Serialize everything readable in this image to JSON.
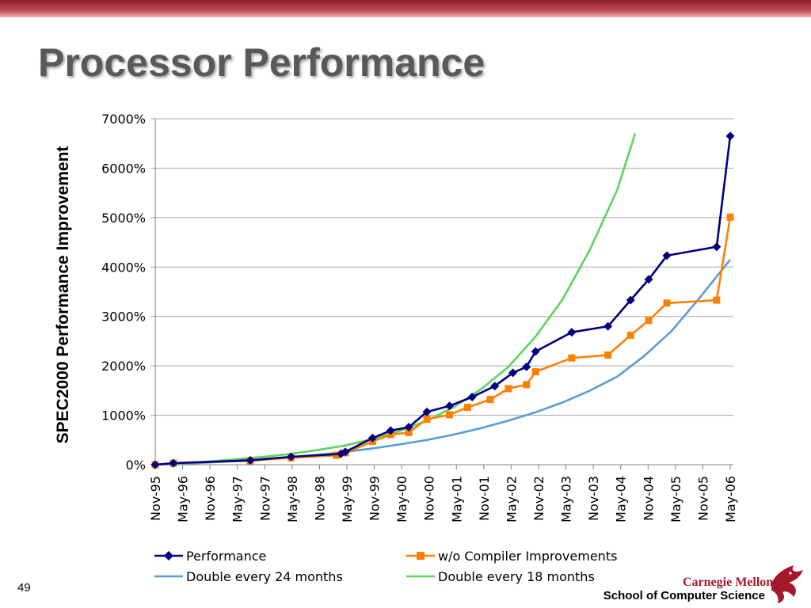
{
  "slide": {
    "title": "Processor Performance",
    "number": "49",
    "footer": "School of Computer Science",
    "logo_text": "Carnegie Mellon",
    "accent_color": "#a3182d"
  },
  "chart_data": {
    "type": "line",
    "title": "",
    "xlabel": "",
    "ylabel": "SPEC2000 Performance Improvement",
    "x_tick_labels": [
      "Nov-95",
      "May-96",
      "Nov-96",
      "May-97",
      "Nov-97",
      "May-98",
      "Nov-98",
      "May-99",
      "Nov-99",
      "May-00",
      "Nov-00",
      "May-01",
      "Nov-01",
      "May-02",
      "Nov-02",
      "May-03",
      "Nov-03",
      "May-04",
      "Nov-04",
      "May-05",
      "Nov-05",
      "May-06"
    ],
    "y_ticks": [
      0,
      1000,
      2000,
      3000,
      4000,
      5000,
      6000,
      7000
    ],
    "y_tick_labels": [
      "0%",
      "1000%",
      "2000%",
      "3000%",
      "4000%",
      "5000%",
      "6000%",
      "7000%"
    ],
    "ylim": [
      0,
      7000
    ],
    "x_unit": "months since Nov-95",
    "xlim": [
      0,
      127
    ],
    "grid": true,
    "legend_position": "bottom",
    "series": [
      {
        "name": "Performance",
        "color": "#000080",
        "marker": "diamond",
        "points": [
          [
            0,
            0
          ],
          [
            4,
            30
          ],
          [
            21,
            90
          ],
          [
            30,
            160
          ],
          [
            41,
            220
          ],
          [
            42,
            260
          ],
          [
            48,
            540
          ],
          [
            52,
            690
          ],
          [
            56,
            760
          ],
          [
            60,
            1070
          ],
          [
            65,
            1190
          ],
          [
            70,
            1370
          ],
          [
            75,
            1590
          ],
          [
            79,
            1860
          ],
          [
            82,
            1980
          ],
          [
            84,
            2290
          ],
          [
            92,
            2680
          ],
          [
            100,
            2800
          ],
          [
            105,
            3330
          ],
          [
            109,
            3750
          ],
          [
            113,
            4230
          ],
          [
            124,
            4410
          ],
          [
            127,
            6650
          ]
        ]
      },
      {
        "name": "w/o Compiler Improvements",
        "color": "#ff8000",
        "marker": "square",
        "points": [
          [
            0,
            0
          ],
          [
            4,
            30
          ],
          [
            21,
            80
          ],
          [
            30,
            140
          ],
          [
            40,
            190
          ],
          [
            42,
            240
          ],
          [
            48,
            470
          ],
          [
            52,
            610
          ],
          [
            56,
            650
          ],
          [
            60,
            920
          ],
          [
            65,
            1010
          ],
          [
            69,
            1160
          ],
          [
            74,
            1320
          ],
          [
            78,
            1540
          ],
          [
            82,
            1620
          ],
          [
            84,
            1880
          ],
          [
            92,
            2160
          ],
          [
            100,
            2220
          ],
          [
            105,
            2620
          ],
          [
            109,
            2920
          ],
          [
            113,
            3270
          ],
          [
            124,
            3330
          ],
          [
            127,
            5010
          ]
        ]
      },
      {
        "name": "Double every 24 months",
        "color": "#5b9bd5",
        "marker": "none",
        "points": [
          [
            0,
            0
          ],
          [
            6,
            20
          ],
          [
            12,
            45
          ],
          [
            18,
            75
          ],
          [
            24,
            110
          ],
          [
            30,
            150
          ],
          [
            36,
            200
          ],
          [
            42,
            260
          ],
          [
            48,
            330
          ],
          [
            54,
            410
          ],
          [
            60,
            500
          ],
          [
            66,
            610
          ],
          [
            72,
            740
          ],
          [
            78,
            890
          ],
          [
            84,
            1060
          ],
          [
            90,
            1260
          ],
          [
            96,
            1500
          ],
          [
            102,
            1780
          ],
          [
            108,
            2200
          ],
          [
            114,
            2700
          ],
          [
            120,
            3350
          ],
          [
            127,
            4150
          ]
        ]
      },
      {
        "name": "Double every 18 months",
        "color": "#5ad55a",
        "marker": "none",
        "points": [
          [
            0,
            0
          ],
          [
            6,
            30
          ],
          [
            12,
            65
          ],
          [
            18,
            110
          ],
          [
            24,
            160
          ],
          [
            30,
            220
          ],
          [
            36,
            300
          ],
          [
            42,
            390
          ],
          [
            48,
            520
          ],
          [
            54,
            680
          ],
          [
            60,
            890
          ],
          [
            66,
            1170
          ],
          [
            72,
            1530
          ],
          [
            78,
            1980
          ],
          [
            84,
            2590
          ],
          [
            90,
            3350
          ],
          [
            96,
            4350
          ],
          [
            102,
            5550
          ],
          [
            106,
            6700
          ]
        ]
      }
    ]
  }
}
